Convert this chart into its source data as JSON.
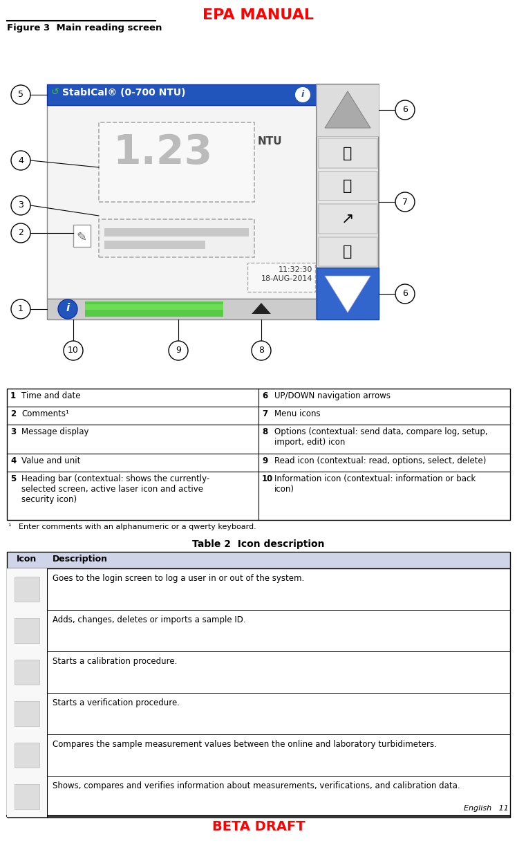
{
  "title_top": "EPA MANUAL",
  "title_bottom": "BETA DRAFT",
  "title_color": "#FF0000",
  "figure_label": "Figure 3  Main reading screen",
  "page_info": "English   11",
  "screen_header_text": "StabICal® (0-700 NTU)",
  "screen_header_bg": "#2255BB",
  "screen_value": "1.23",
  "screen_unit": "NTU",
  "screen_time": "11:32:30",
  "screen_date": "18-AUG-2014",
  "table1_rows": [
    [
      "1",
      "Time and date",
      "6",
      "UP/DOWN navigation arrows"
    ],
    [
      "2",
      "Comments¹",
      "7",
      "Menu icons"
    ],
    [
      "3",
      "Message display",
      "8",
      "Options (contextual: send data, compare log, setup,\nimport, edit) icon"
    ],
    [
      "4",
      "Value and unit",
      "9",
      "Read icon (contextual: read, options, select, delete)"
    ],
    [
      "5",
      "Heading bar (contextual: shows the currently-\nselected screen, active laser icon and active\nsecurity icon)",
      "10",
      "Information icon (contextual: information or back\nicon)"
    ]
  ],
  "footnote": "¹   Enter comments with an alphanumeric or a qwerty keyboard.",
  "table2_title": "Table 2  Icon description",
  "table2_header": [
    "Icon",
    "Description"
  ],
  "table2_rows": [
    "Goes to the login screen to log a user in or out of the system.",
    "Adds, changes, deletes or imports a sample ID.",
    "Starts a calibration procedure.",
    "Starts a verification procedure.",
    "Compares the sample measurement values between the online and laboratory turbidimeters.",
    "Shows, compares and verifies information about measurements, verifications, and calibration data."
  ],
  "table_header_bg": "#D0D4E8",
  "bg_color": "#FFFFFF",
  "border_color": "#000000",
  "text_color": "#000000"
}
